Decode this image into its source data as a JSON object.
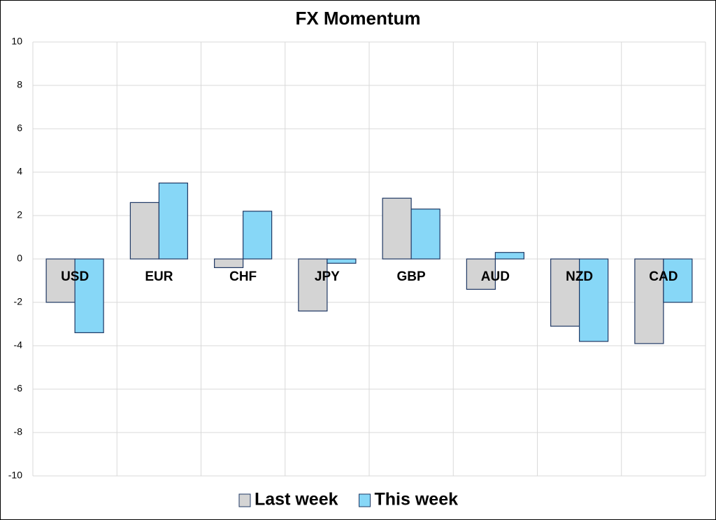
{
  "chart_data": {
    "type": "bar",
    "title": "FX Momentum",
    "categories": [
      "USD",
      "EUR",
      "CHF",
      "JPY",
      "GBP",
      "AUD",
      "NZD",
      "CAD"
    ],
    "series": [
      {
        "name": "Last week",
        "color": "#d4d4d4",
        "values": [
          -2.0,
          2.6,
          -0.4,
          -2.4,
          2.8,
          -1.4,
          -3.1,
          -3.9
        ]
      },
      {
        "name": "This week",
        "color": "#87d7f7",
        "values": [
          -3.4,
          3.5,
          2.2,
          -0.2,
          2.3,
          0.3,
          -3.8,
          -2.0
        ]
      }
    ],
    "ylim": [
      -10,
      10
    ],
    "yticks": [
      -10,
      -8,
      -6,
      -4,
      -2,
      0,
      2,
      4,
      6,
      8,
      10
    ],
    "grid": true,
    "legend": "bottom"
  }
}
